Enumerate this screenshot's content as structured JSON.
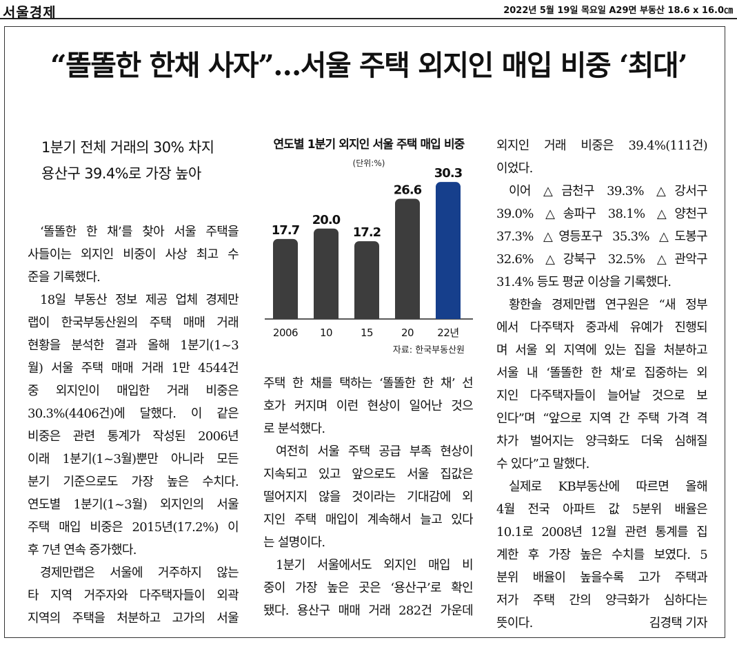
{
  "masthead": {
    "paper_name": "서울경제",
    "edition_info": "2022년 5월 19일 목요일 A29면 부동산 18.6 x 16.0㎝"
  },
  "headline": "“똘똘한 한채 사자”…서울 주택 외지인 매입 비중 ‘최대’",
  "subhead": [
    "1분기 전체 거래의 30% 차지",
    "용산구 39.4%로 가장 높아"
  ],
  "chart": {
    "title": "연도별 1분기 외지인 서울 주택 매입 비중",
    "unit": "(단위:%)",
    "source": "자료: 한국부동산원"
  },
  "chart_data": {
    "type": "bar",
    "title": "연도별 1분기 외지인 서울 주택 매입 비중",
    "unit": "(단위:%)",
    "categories": [
      "2006",
      "10",
      "15",
      "20",
      "22년"
    ],
    "values": [
      17.7,
      20.0,
      17.2,
      26.6,
      30.3
    ],
    "value_labels": [
      "17.7",
      "20.0",
      "17.2",
      "26.6",
      "30.3"
    ],
    "colors": [
      "#3d3d3d",
      "#3d3d3d",
      "#3d3d3d",
      "#3d3d3d",
      "#163f8c"
    ],
    "highlight_color": "#163f8c",
    "bar_color": "#3d3d3d",
    "grid": false,
    "source": "자료: 한국부동산원"
  },
  "article": {
    "col1": [
      "‘똘똘한 한 채’를 찾아 서울 주택을",
      "사들이는 외지인 비중이 사상 최고 수",
      "준을 기록했다.",
      "18일 부동산 정보 제공 업체 경제만",
      "랩이 한국부동산원의 주택 매매 거래",
      "현황을 분석한 결과 올해 1분기(1~3",
      "월) 서울 주택 매매 거래 1만 4544건",
      "중 외지인이 매입한 거래 비중은",
      "30.3%(4406건)에 달했다. 이 같은",
      "비중은 관련 통계가 작성된 2006년",
      "이래 1분기(1~3월)뿐만 아니라 모든",
      "분기 기준으로도 가장 높은 수치다.",
      "연도별 1분기(1~3월) 외지인의 서울",
      "주택 매입 비중은 2015년(17.2%) 이",
      "후 7년 연속 증가했다.",
      "경제만랩은 서울에 거주하지 않는",
      "타 지역 거주자와 다주택자들이 외곽",
      "지역의 주택을 처분하고 고가의 서울"
    ],
    "col2": [
      "주택 한 채를 택하는 ‘똘똘한 한 채’ 선",
      "호가 커지며 이런 현상이 일어난 것으",
      "로 분석했다.",
      "여전히 서울 주택 공급 부족 현상이",
      "지속되고 있고 앞으로도 서울 집값은",
      "떨어지지 않을 것이라는 기대감에 외",
      "지인 주택 매입이 계속해서 늘고 있다",
      "는 설명이다.",
      "1분기 서울에서도 외지인 매입 비",
      "중이 가장 높은 곳은 ‘용산구’로 확인",
      "됐다. 용산구 매매 거래 282건 가운데"
    ],
    "col3": [
      "외지인 거래 비중은 39.4%(111건)",
      "이었다.",
      "이어 △금천구 39.3% △강서구",
      "39.0% △송파구 38.1% △양천구",
      "37.3% △영등포구 35.3% △도봉구",
      "32.6% △강북구 32.5% △관악구",
      "31.4% 등도 평균 이상을 기록했다.",
      "황한솔 경제만랩 연구원은 “새 정부",
      "에서 다주택자 중과세 유예가 진행되",
      "며 서울 외 지역에 있는 집을 처분하고",
      "서울 내 ‘똘똘한 한 채’로 집중하는 외",
      "지인 다주택자들이 늘어날 것으로 보",
      "인다”며 “앞으로 지역 간 주택 가격 격",
      "차가 벌어지는 양극화도 더욱 심해질",
      "수 있다”고 말했다.",
      "실제로 KB부동산에 따르면 올해",
      "4월 전국 아파트 값 5분위 배율은",
      "10.1로 2008년 12월 관련 통계를 집",
      "계한 후 가장 높은 수치를 보였다. 5",
      "분위 배율이 높을수록 고가 주택과",
      "저가 주택 간의 양극화가 심하다는",
      "뜻이다."
    ],
    "byline": "김경택 기자"
  }
}
